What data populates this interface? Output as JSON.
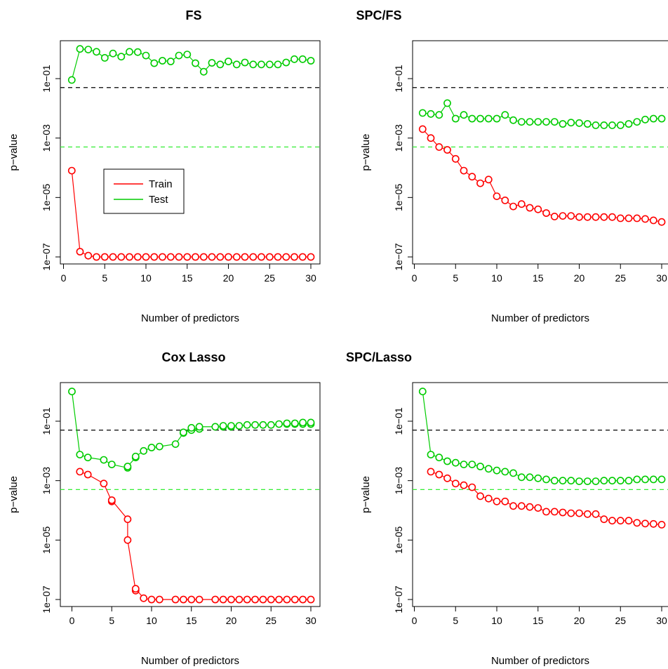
{
  "colors": {
    "train": "#ff0000",
    "test": "#00cc00",
    "ref_black": "#000000",
    "ref_green": "#33ee33"
  },
  "chart_data": [
    {
      "type": "scatter",
      "title": "FS",
      "xlabel": "Number of predictors",
      "ylabel": "p−value",
      "xticks": [
        "0",
        "5",
        "10",
        "15",
        "20",
        "25",
        "30"
      ],
      "yticks": [
        "1e−07",
        "1e−05",
        "1e−03",
        "1e−01"
      ],
      "xlim": [
        0,
        30
      ],
      "ylim_log10": [
        -7,
        0
      ],
      "log_y": true,
      "legend": [
        "Train",
        "Test"
      ],
      "legend_position": "left-middle",
      "reference_lines": [
        {
          "y": 0.05,
          "style": "dashed",
          "color": "black"
        },
        {
          "y": 0.0005,
          "style": "dashed",
          "color": "green"
        }
      ],
      "series": [
        {
          "name": "Train",
          "x": [
            1,
            2,
            3,
            4,
            5,
            6,
            7,
            8,
            9,
            10,
            11,
            12,
            13,
            14,
            15,
            16,
            17,
            18,
            19,
            20,
            21,
            22,
            23,
            24,
            25,
            26,
            27,
            28,
            29,
            30
          ],
          "y": [
            8e-05,
            1.5e-07,
            1.1e-07,
            1e-07,
            1e-07,
            1e-07,
            1e-07,
            1e-07,
            1e-07,
            1e-07,
            1e-07,
            1e-07,
            1e-07,
            1e-07,
            1e-07,
            1e-07,
            1e-07,
            1e-07,
            1e-07,
            1e-07,
            1e-07,
            1e-07,
            1e-07,
            1e-07,
            1e-07,
            1e-07,
            1e-07,
            1e-07,
            1e-07,
            1e-07
          ]
        },
        {
          "name": "Test",
          "x": [
            1,
            2,
            3,
            4,
            5,
            6,
            7,
            8,
            9,
            10,
            11,
            12,
            13,
            14,
            15,
            16,
            17,
            18,
            19,
            20,
            21,
            22,
            23,
            24,
            25,
            26,
            27,
            28,
            29,
            30
          ],
          "y": [
            0.09,
            1.0,
            0.95,
            0.8,
            0.5,
            0.7,
            0.55,
            0.8,
            0.78,
            0.6,
            0.33,
            0.4,
            0.38,
            0.6,
            0.65,
            0.33,
            0.17,
            0.34,
            0.3,
            0.38,
            0.3,
            0.35,
            0.3,
            0.3,
            0.3,
            0.3,
            0.35,
            0.45,
            0.45,
            0.4
          ]
        }
      ]
    },
    {
      "type": "scatter",
      "title": "SPC/FS",
      "xlabel": "Number of predictors",
      "ylabel": "p−value",
      "xticks": [
        "0",
        "5",
        "10",
        "15",
        "20",
        "25",
        "30"
      ],
      "yticks": [
        "1e−07",
        "1e−05",
        "1e−03",
        "1e−01"
      ],
      "xlim": [
        0,
        30
      ],
      "ylim_log10": [
        -7,
        0
      ],
      "log_y": true,
      "reference_lines": [
        {
          "y": 0.05,
          "style": "dashed",
          "color": "black"
        },
        {
          "y": 0.0005,
          "style": "dashed",
          "color": "green"
        }
      ],
      "series": [
        {
          "name": "Train",
          "x": [
            1,
            2,
            3,
            4,
            5,
            6,
            7,
            8,
            9,
            10,
            11,
            12,
            13,
            14,
            15,
            16,
            17,
            18,
            19,
            20,
            21,
            22,
            23,
            24,
            25,
            26,
            27,
            28,
            29,
            30
          ],
          "y": [
            0.002,
            0.001,
            0.0005,
            0.0004,
            0.0002,
            8e-05,
            5e-05,
            3e-05,
            4e-05,
            1.1e-05,
            8e-06,
            5e-06,
            6e-06,
            4.5e-06,
            4e-06,
            3e-06,
            2.3e-06,
            2.4e-06,
            2.4e-06,
            2.2e-06,
            2.2e-06,
            2.2e-06,
            2.2e-06,
            2.2e-06,
            2e-06,
            2e-06,
            2e-06,
            1.9e-06,
            1.7e-06,
            1.5e-06
          ]
        },
        {
          "name": "Test",
          "x": [
            1,
            2,
            3,
            4,
            5,
            6,
            7,
            8,
            9,
            10,
            11,
            12,
            13,
            14,
            15,
            16,
            17,
            18,
            19,
            20,
            21,
            22,
            23,
            24,
            25,
            26,
            27,
            28,
            29,
            30
          ],
          "y": [
            0.007,
            0.0065,
            0.006,
            0.015,
            0.0045,
            0.006,
            0.0045,
            0.0045,
            0.0045,
            0.0045,
            0.006,
            0.004,
            0.0035,
            0.0035,
            0.0035,
            0.0035,
            0.0035,
            0.003,
            0.0033,
            0.0032,
            0.003,
            0.0027,
            0.0027,
            0.0027,
            0.0027,
            0.003,
            0.0035,
            0.0042,
            0.0045,
            0.0045
          ]
        }
      ]
    },
    {
      "type": "scatter",
      "title": "Cox Lasso",
      "xlabel": "Number of predictors",
      "ylabel": "p−value",
      "xticks": [
        "0",
        "5",
        "10",
        "15",
        "20",
        "25",
        "30"
      ],
      "yticks": [
        "1e−07",
        "1e−05",
        "1e−03",
        "1e−01"
      ],
      "xlim": [
        0,
        30
      ],
      "ylim_log10": [
        -7,
        0
      ],
      "log_y": true,
      "reference_lines": [
        {
          "y": 0.05,
          "style": "dashed",
          "color": "black"
        },
        {
          "y": 0.0005,
          "style": "dashed",
          "color": "green"
        }
      ],
      "series": [
        {
          "name": "Train",
          "x": [
            1,
            2,
            4,
            5,
            5,
            7,
            7,
            8,
            8,
            9,
            10,
            11,
            13,
            14,
            15,
            16,
            18,
            19,
            20,
            21,
            22,
            23,
            24,
            25,
            26,
            27,
            28,
            29,
            30
          ],
          "y": [
            0.002,
            0.0016,
            0.0008,
            0.0002,
            0.00022,
            5e-05,
            1e-05,
            2e-07,
            2.3e-07,
            1.1e-07,
            1e-07,
            1e-07,
            1e-07,
            1e-07,
            1e-07,
            1e-07,
            1e-07,
            1e-07,
            1e-07,
            1e-07,
            1e-07,
            1e-07,
            1e-07,
            1e-07,
            1e-07,
            1e-07,
            1e-07,
            1e-07,
            1e-07
          ]
        },
        {
          "name": "Test",
          "x": [
            0,
            1,
            2,
            4,
            5,
            7,
            7,
            8,
            8,
            9,
            10,
            11,
            13,
            14,
            14,
            15,
            15,
            16,
            16,
            18,
            19,
            19,
            20,
            20,
            21,
            22,
            23,
            24,
            25,
            26,
            27,
            27,
            28,
            28,
            29,
            29,
            30,
            30
          ],
          "y": [
            1.0,
            0.0075,
            0.006,
            0.005,
            0.0035,
            0.0027,
            0.003,
            0.006,
            0.0065,
            0.01,
            0.013,
            0.014,
            0.017,
            0.04,
            0.042,
            0.05,
            0.06,
            0.055,
            0.065,
            0.065,
            0.065,
            0.07,
            0.065,
            0.07,
            0.07,
            0.075,
            0.075,
            0.075,
            0.075,
            0.08,
            0.08,
            0.085,
            0.08,
            0.085,
            0.08,
            0.09,
            0.08,
            0.09
          ]
        }
      ]
    },
    {
      "type": "scatter",
      "title": "SPC/Lasso",
      "xlabel": "Number of predictors",
      "ylabel": "p−value",
      "xticks": [
        "0",
        "5",
        "10",
        "15",
        "20",
        "25",
        "30"
      ],
      "yticks": [
        "1e−07",
        "1e−05",
        "1e−03",
        "1e−01"
      ],
      "xlim": [
        0,
        30
      ],
      "ylim_log10": [
        -7,
        0
      ],
      "log_y": true,
      "reference_lines": [
        {
          "y": 0.05,
          "style": "dashed",
          "color": "black"
        },
        {
          "y": 0.0005,
          "style": "dashed",
          "color": "green"
        }
      ],
      "series": [
        {
          "name": "Train",
          "x": [
            2,
            3,
            4,
            5,
            6,
            7,
            8,
            9,
            10,
            11,
            12,
            13,
            14,
            15,
            16,
            17,
            18,
            19,
            20,
            21,
            22,
            23,
            24,
            25,
            26,
            27,
            28,
            29,
            30
          ],
          "y": [
            0.002,
            0.0016,
            0.0012,
            0.0008,
            0.0007,
            0.0006,
            0.0003,
            0.00025,
            0.0002,
            0.0002,
            0.00014,
            0.00014,
            0.00013,
            0.00012,
            9e-05,
            9e-05,
            8.5e-05,
            8e-05,
            8e-05,
            7.5e-05,
            7.5e-05,
            5e-05,
            4.5e-05,
            4.5e-05,
            4.5e-05,
            3.8e-05,
            3.6e-05,
            3.5e-05,
            3.3e-05
          ]
        },
        {
          "name": "Test",
          "x": [
            1,
            2,
            3,
            4,
            5,
            6,
            7,
            8,
            9,
            10,
            11,
            12,
            13,
            14,
            15,
            16,
            17,
            18,
            19,
            20,
            21,
            22,
            23,
            24,
            25,
            26,
            27,
            28,
            29,
            30
          ],
          "y": [
            1.0,
            0.0075,
            0.006,
            0.0045,
            0.004,
            0.0035,
            0.0035,
            0.003,
            0.0025,
            0.0022,
            0.002,
            0.0018,
            0.0013,
            0.0013,
            0.0012,
            0.0011,
            0.001,
            0.001,
            0.001,
            0.00095,
            0.00095,
            0.00095,
            0.001,
            0.001,
            0.001,
            0.001,
            0.0011,
            0.0011,
            0.0011,
            0.0011
          ]
        }
      ]
    }
  ]
}
